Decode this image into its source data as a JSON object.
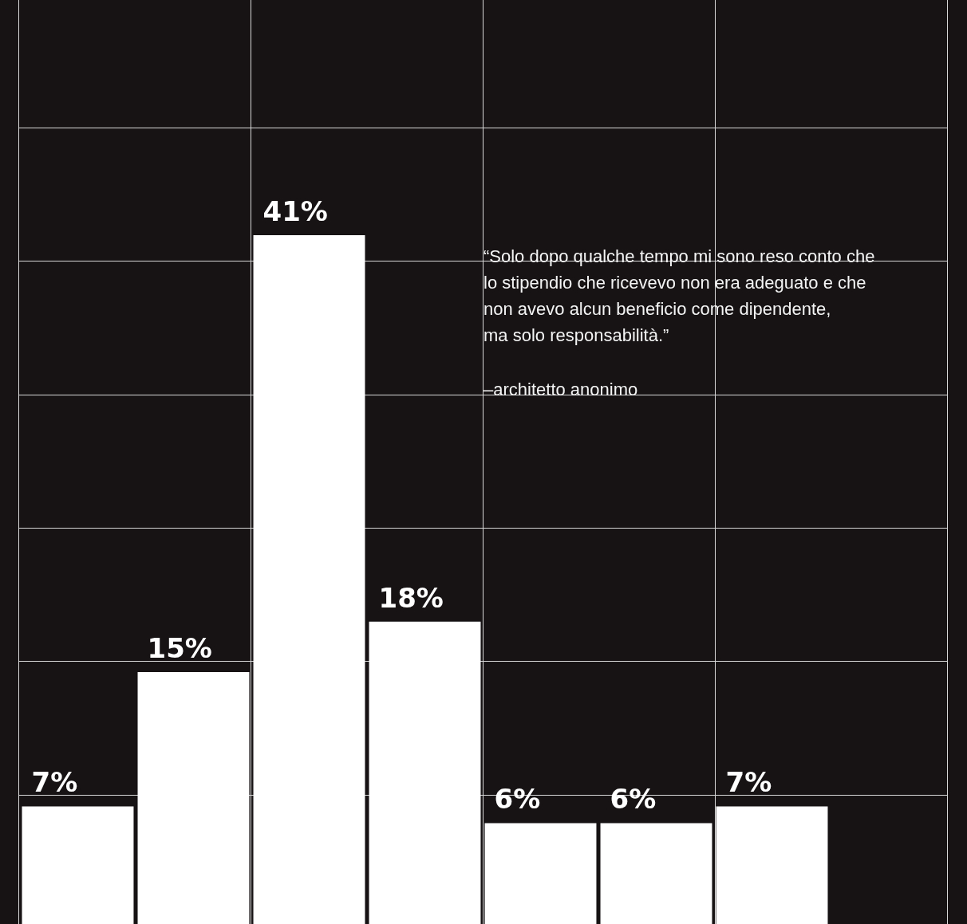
{
  "chart_data": {
    "type": "bar",
    "categories": [
      null,
      null,
      null,
      null,
      null,
      null,
      null
    ],
    "values": [
      7,
      15,
      41,
      18,
      6,
      6,
      7
    ],
    "value_labels": [
      "7%",
      "15%",
      "41%",
      "18%",
      "6%",
      "6%",
      "7%"
    ],
    "color": "#ffffff",
    "ylim": [
      0,
      55
    ],
    "tick_labels": false,
    "legend": false,
    "annotations": [
      "“Solo dopo qualche tempo mi sono reso conto che\nlo stipendio che ricevevo non era adeguato e che\nnon avevo alcun beneficio come dipendente,\nma solo responsabilità.”",
      "–architetto anonimo"
    ]
  }
}
